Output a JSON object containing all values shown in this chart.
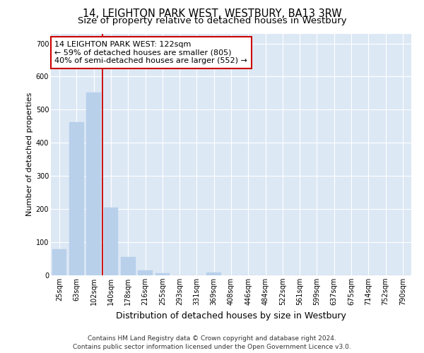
{
  "title": "14, LEIGHTON PARK WEST, WESTBURY, BA13 3RW",
  "subtitle": "Size of property relative to detached houses in Westbury",
  "xlabel": "Distribution of detached houses by size in Westbury",
  "ylabel": "Number of detached properties",
  "bar_labels": [
    "25sqm",
    "63sqm",
    "102sqm",
    "140sqm",
    "178sqm",
    "216sqm",
    "255sqm",
    "293sqm",
    "331sqm",
    "369sqm",
    "408sqm",
    "446sqm",
    "484sqm",
    "522sqm",
    "561sqm",
    "599sqm",
    "637sqm",
    "675sqm",
    "714sqm",
    "752sqm",
    "790sqm"
  ],
  "bar_values": [
    78,
    462,
    551,
    204,
    55,
    14,
    7,
    0,
    0,
    8,
    0,
    0,
    0,
    0,
    0,
    0,
    0,
    0,
    0,
    0,
    0
  ],
  "bar_color": "#b8d0ea",
  "bar_edge_color": "#b8d0ea",
  "background_color": "#dde8f5",
  "grid_color": "#ffffff",
  "vline_x": 2.5,
  "vline_color": "#cc0000",
  "annotation_text": "14 LEIGHTON PARK WEST: 122sqm\n← 59% of detached houses are smaller (805)\n40% of semi-detached houses are larger (552) →",
  "annotation_box_color": "white",
  "annotation_box_edge": "#cc0000",
  "ylim": [
    0,
    730
  ],
  "yticks": [
    0,
    100,
    200,
    300,
    400,
    500,
    600,
    700
  ],
  "footer_text": "Contains HM Land Registry data © Crown copyright and database right 2024.\nContains public sector information licensed under the Open Government Licence v3.0.",
  "title_fontsize": 10.5,
  "subtitle_fontsize": 9.5,
  "xlabel_fontsize": 9,
  "ylabel_fontsize": 8,
  "tick_fontsize": 7,
  "annotation_fontsize": 8,
  "footer_fontsize": 6.5
}
